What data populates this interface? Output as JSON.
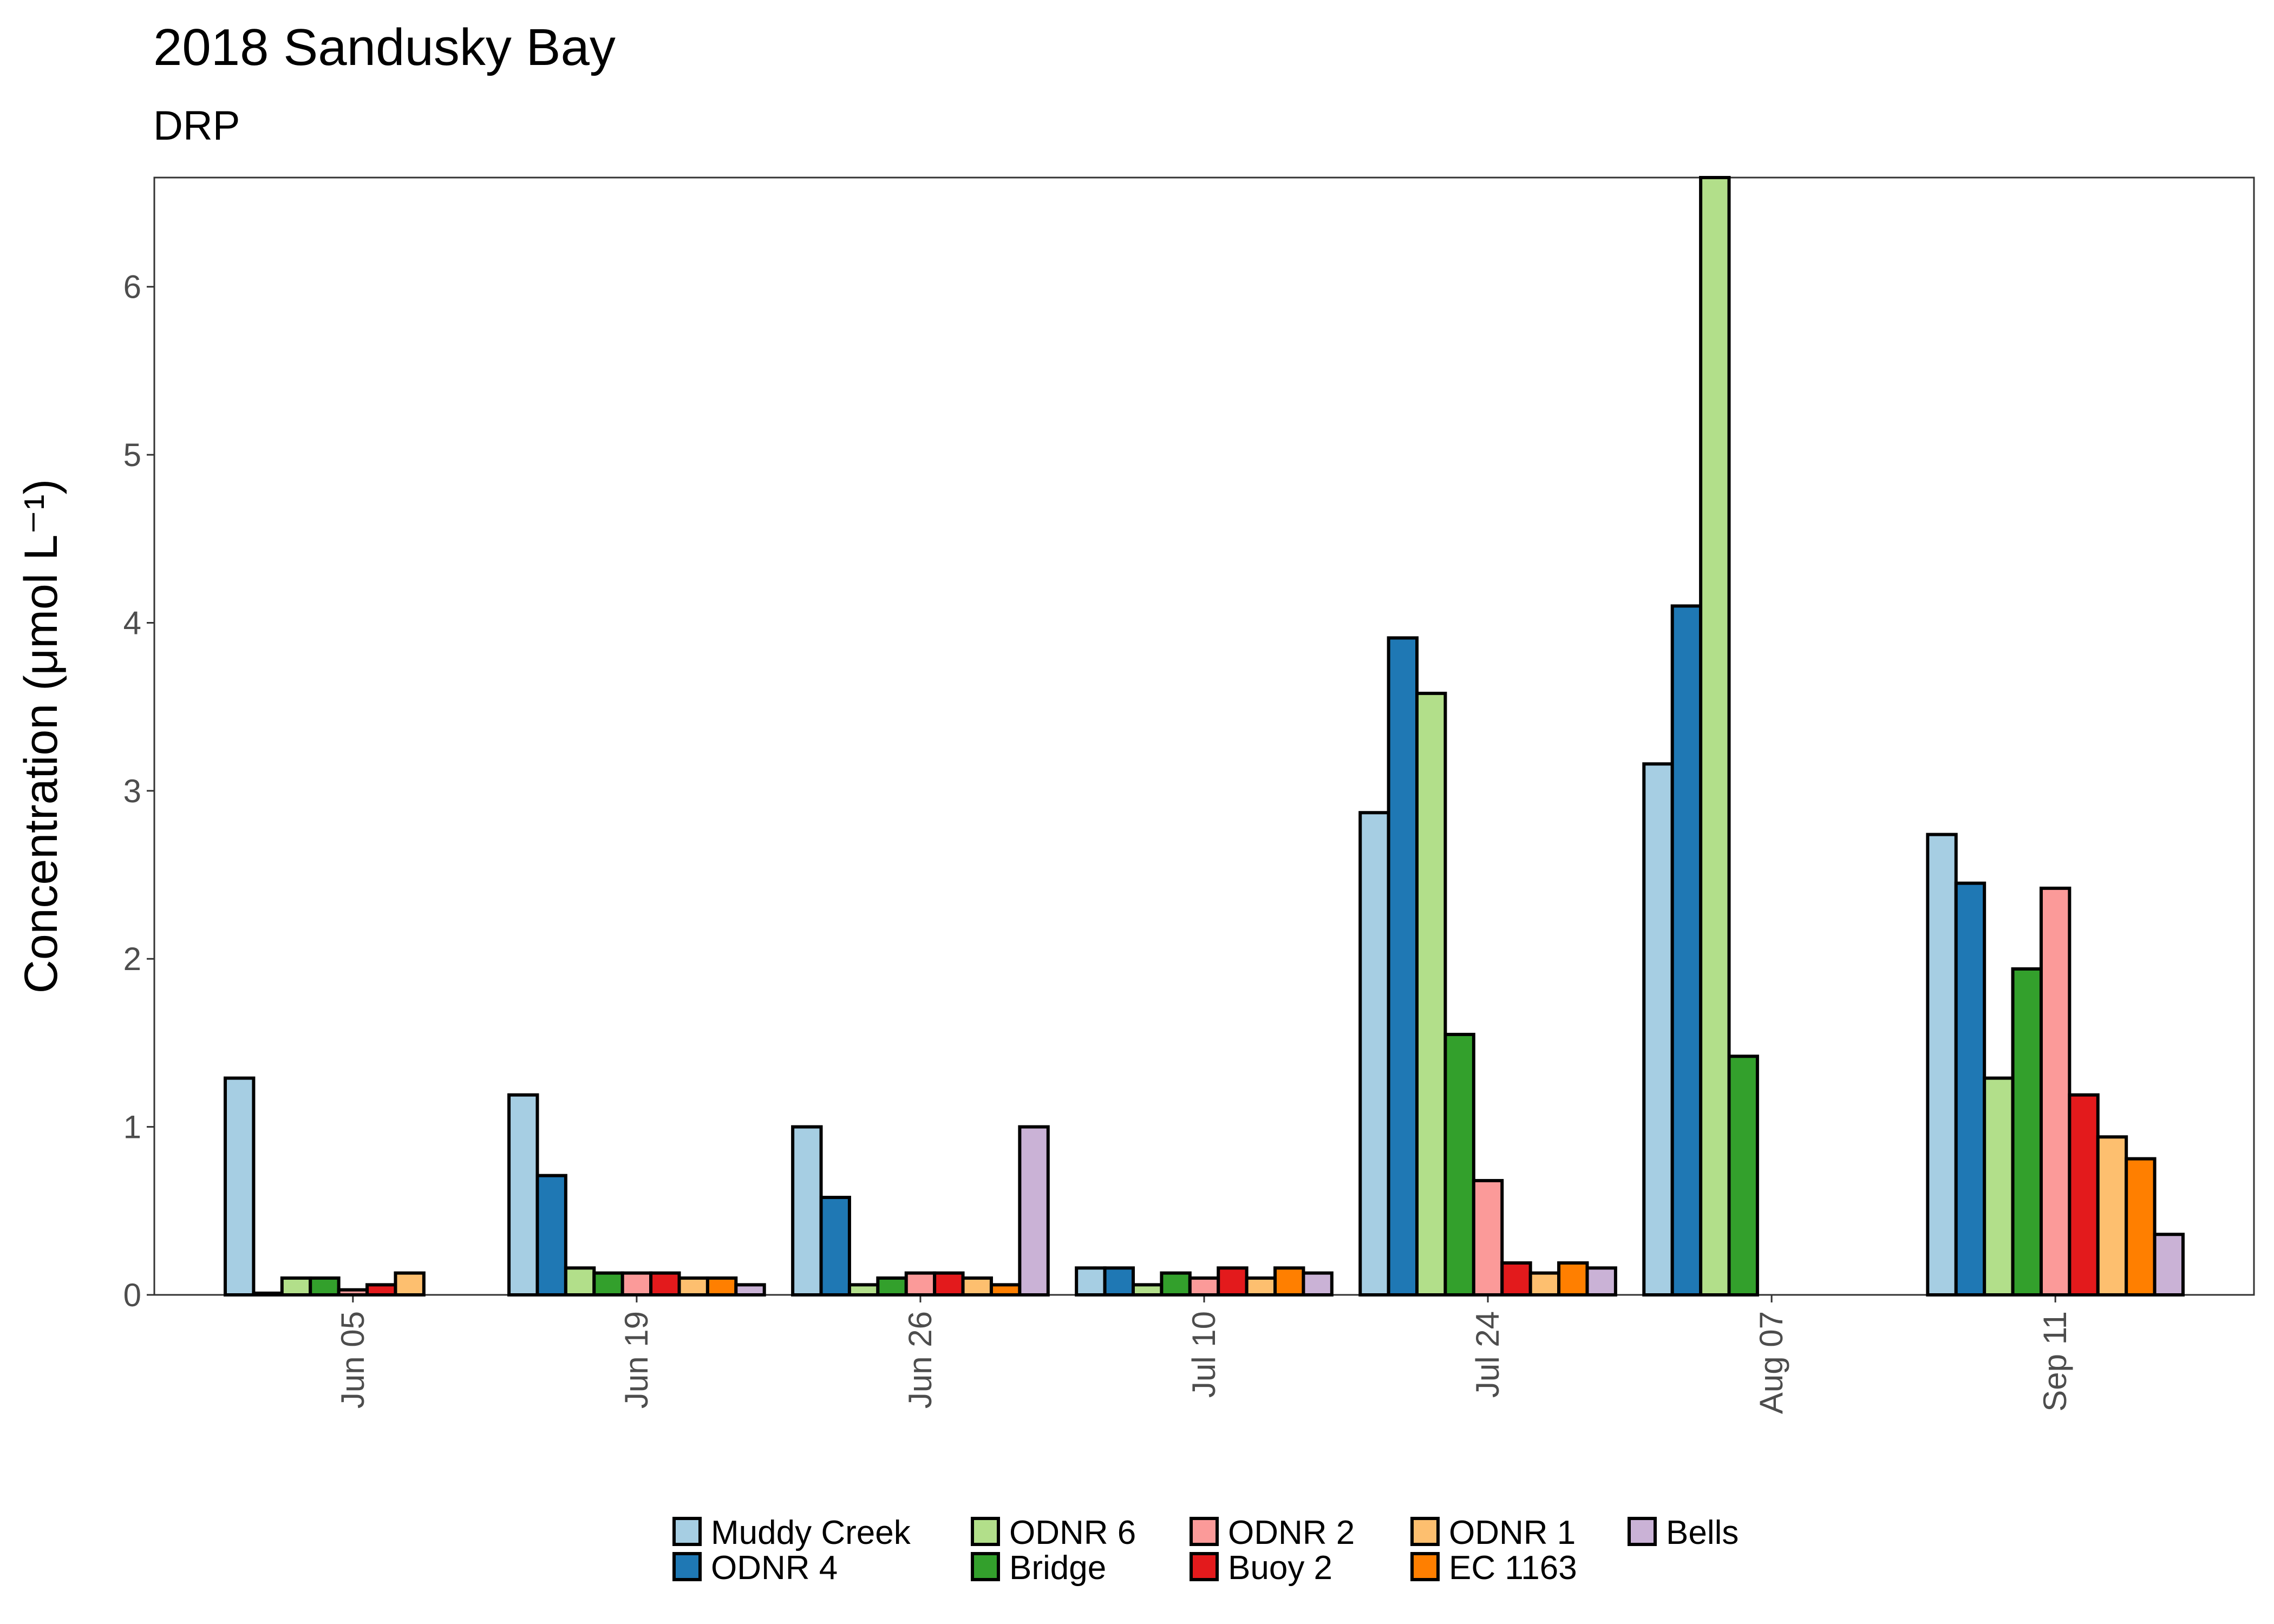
{
  "chart_data": {
    "type": "bar",
    "title": "2018 Sandusky Bay",
    "subtitle": "DRP",
    "ylabel": "Concentration (μmol L⁻¹)",
    "xlabel": "",
    "ylim": [
      0,
      6.65
    ],
    "yticks": [
      0,
      1,
      2,
      3,
      4,
      5,
      6
    ],
    "grid": false,
    "legend_position": "bottom",
    "categories": [
      "Jun 05",
      "Jun 19",
      "Jun 26",
      "Jul 10",
      "Jul 24",
      "Aug 07",
      "Sep 11"
    ],
    "series": [
      {
        "name": "Muddy Creek",
        "color": "#a6cee3",
        "values": [
          1.29,
          1.19,
          1.0,
          0.16,
          2.87,
          3.16,
          2.74
        ]
      },
      {
        "name": "ODNR 4",
        "color": "#1f78b4",
        "values": [
          0.01,
          0.71,
          0.58,
          0.16,
          3.91,
          4.1,
          2.45
        ]
      },
      {
        "name": "ODNR 6",
        "color": "#b2df8a",
        "values": [
          0.1,
          0.16,
          0.06,
          0.06,
          3.58,
          6.65,
          1.29
        ]
      },
      {
        "name": "Bridge",
        "color": "#33a02c",
        "values": [
          0.1,
          0.13,
          0.1,
          0.13,
          1.55,
          1.42,
          1.94
        ]
      },
      {
        "name": "ODNR 2",
        "color": "#fb9a99",
        "values": [
          0.03,
          0.13,
          0.13,
          0.1,
          0.68,
          null,
          2.42
        ]
      },
      {
        "name": "Buoy 2",
        "color": "#e31a1c",
        "values": [
          0.06,
          0.13,
          0.13,
          0.16,
          0.19,
          null,
          1.19
        ]
      },
      {
        "name": "ODNR 1",
        "color": "#fdbf6f",
        "values": [
          0.13,
          0.1,
          0.1,
          0.1,
          0.13,
          null,
          0.94
        ]
      },
      {
        "name": "EC 1163",
        "color": "#ff7f00",
        "values": [
          0.0,
          0.1,
          0.06,
          0.16,
          0.19,
          null,
          0.81
        ]
      },
      {
        "name": "Bells",
        "color": "#cab2d6",
        "values": [
          null,
          0.06,
          1.0,
          0.13,
          0.16,
          null,
          0.36
        ]
      }
    ]
  }
}
